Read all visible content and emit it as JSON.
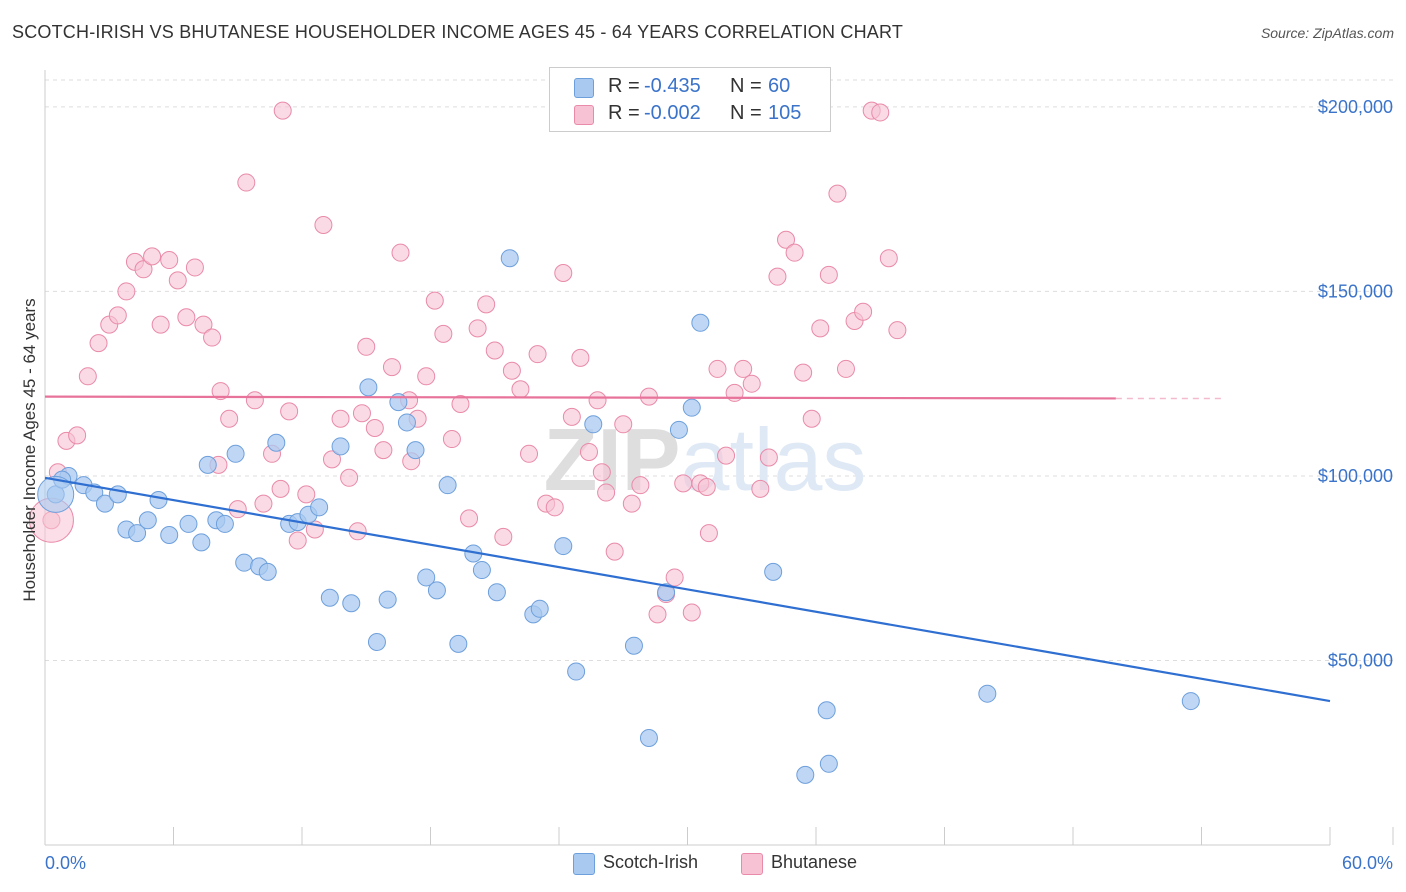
{
  "title": "SCOTCH-IRISH VS BHUTANESE HOUSEHOLDER INCOME AGES 45 - 64 YEARS CORRELATION CHART",
  "source": "Source: ZipAtlas.com",
  "watermark": "ZIPatlas",
  "colors": {
    "blue_fill": "#a9c9f0",
    "blue_stroke": "#6d9fdc",
    "blue_line": "#2f6fd1",
    "pink_fill": "#f7c3d4",
    "pink_stroke": "#e98aa8",
    "pink_line": "#e8739a",
    "axis_text": "#3a73c9",
    "grid": "#dddddd"
  },
  "legend": {
    "row1": {
      "r_label": "R =",
      "r_value": "-0.435",
      "n_label": "N =",
      "n_value": "60"
    },
    "row2": {
      "r_label": "R =",
      "r_value": "-0.002",
      "n_label": "N =",
      "n_value": "105"
    }
  },
  "chart_data": {
    "type": "scatter",
    "title": "SCOTCH-IRISH VS BHUTANESE HOUSEHOLDER INCOME AGES 45 - 64 YEARS CORRELATION CHART",
    "xlabel": "",
    "ylabel": "Householder Income Ages 45 - 64 years",
    "xlim": [
      0,
      60
    ],
    "ylim": [
      0,
      210000
    ],
    "x_tick_labels": [
      "0.0%",
      "60.0%"
    ],
    "y_tick_labels": [
      "$50,000",
      "$100,000",
      "$150,000",
      "$200,000"
    ],
    "y_ticks": [
      50000,
      100000,
      150000,
      200000
    ],
    "grid": true,
    "legend_position": "top-center",
    "series": [
      {
        "name": "Scotch-Irish",
        "color": "#a9c9f0",
        "trend": {
          "x0": 0,
          "y0": 99500,
          "x1": 60,
          "y1": 39000
        },
        "points": [
          [
            0.5,
            95000
          ],
          [
            1.1,
            100000
          ],
          [
            1.8,
            97500
          ],
          [
            2.3,
            95500
          ],
          [
            2.8,
            92500
          ],
          [
            3.4,
            95000
          ],
          [
            3.8,
            85500
          ],
          [
            4.3,
            84500
          ],
          [
            4.8,
            88000
          ],
          [
            5.3,
            93500
          ],
          [
            5.8,
            84000
          ],
          [
            6.7,
            87000
          ],
          [
            7.3,
            82000
          ],
          [
            7.6,
            103000
          ],
          [
            8.0,
            88000
          ],
          [
            8.4,
            87000
          ],
          [
            8.9,
            106000
          ],
          [
            9.3,
            76500
          ],
          [
            10.0,
            75500
          ],
          [
            10.4,
            74000
          ],
          [
            10.8,
            109000
          ],
          [
            11.4,
            87000
          ],
          [
            11.8,
            87500
          ],
          [
            12.3,
            89500
          ],
          [
            12.8,
            91500
          ],
          [
            13.3,
            67000
          ],
          [
            13.8,
            108000
          ],
          [
            14.3,
            65500
          ],
          [
            15.1,
            124000
          ],
          [
            15.5,
            55000
          ],
          [
            16.0,
            66500
          ],
          [
            16.5,
            120000
          ],
          [
            16.9,
            114500
          ],
          [
            17.3,
            107000
          ],
          [
            17.8,
            72500
          ],
          [
            18.3,
            69000
          ],
          [
            18.8,
            97500
          ],
          [
            19.3,
            54500
          ],
          [
            20.0,
            79000
          ],
          [
            20.4,
            74500
          ],
          [
            21.1,
            68500
          ],
          [
            21.7,
            159000
          ],
          [
            22.8,
            62500
          ],
          [
            23.1,
            64000
          ],
          [
            24.2,
            81000
          ],
          [
            24.8,
            47000
          ],
          [
            25.6,
            114000
          ],
          [
            27.5,
            54000
          ],
          [
            28.2,
            29000
          ],
          [
            29.0,
            68500
          ],
          [
            29.6,
            112500
          ],
          [
            30.2,
            118500
          ],
          [
            30.6,
            141500
          ],
          [
            34.0,
            74000
          ],
          [
            35.5,
            19000
          ],
          [
            36.5,
            36500
          ],
          [
            36.6,
            22000
          ],
          [
            44.0,
            41000
          ],
          [
            53.5,
            39000
          ],
          [
            0.8,
            99000
          ]
        ]
      },
      {
        "name": "Bhutanese",
        "color": "#f7c3d4",
        "trend": {
          "x0": 0,
          "y0": 121500,
          "x1": 50,
          "y1": 121000,
          "dash_to": 55
        },
        "points": [
          [
            0.3,
            88000
          ],
          [
            0.6,
            101000
          ],
          [
            1.0,
            109500
          ],
          [
            1.5,
            111000
          ],
          [
            2.0,
            127000
          ],
          [
            2.5,
            136000
          ],
          [
            3.0,
            141000
          ],
          [
            3.4,
            143500
          ],
          [
            3.8,
            150000
          ],
          [
            4.2,
            158000
          ],
          [
            4.6,
            156000
          ],
          [
            5.0,
            159500
          ],
          [
            5.4,
            141000
          ],
          [
            5.8,
            158500
          ],
          [
            6.2,
            153000
          ],
          [
            6.6,
            143000
          ],
          [
            7.0,
            156500
          ],
          [
            7.4,
            141000
          ],
          [
            7.8,
            137500
          ],
          [
            8.2,
            123000
          ],
          [
            8.6,
            115500
          ],
          [
            9.0,
            91000
          ],
          [
            9.4,
            179500
          ],
          [
            9.8,
            120500
          ],
          [
            10.2,
            92500
          ],
          [
            10.6,
            106000
          ],
          [
            11.0,
            96500
          ],
          [
            11.4,
            117500
          ],
          [
            11.8,
            82500
          ],
          [
            12.2,
            95000
          ],
          [
            12.6,
            85500
          ],
          [
            13.0,
            168000
          ],
          [
            13.4,
            104500
          ],
          [
            13.8,
            115500
          ],
          [
            14.2,
            99500
          ],
          [
            14.6,
            85000
          ],
          [
            15.0,
            135000
          ],
          [
            15.4,
            113000
          ],
          [
            15.8,
            107000
          ],
          [
            16.2,
            129500
          ],
          [
            16.6,
            160500
          ],
          [
            17.0,
            120500
          ],
          [
            17.4,
            115500
          ],
          [
            17.8,
            127000
          ],
          [
            18.2,
            147500
          ],
          [
            18.6,
            138500
          ],
          [
            19.0,
            110000
          ],
          [
            19.4,
            119500
          ],
          [
            19.8,
            88500
          ],
          [
            20.2,
            140000
          ],
          [
            20.6,
            146500
          ],
          [
            21.0,
            134000
          ],
          [
            21.4,
            83500
          ],
          [
            21.8,
            128500
          ],
          [
            22.2,
            123500
          ],
          [
            22.6,
            106000
          ],
          [
            23.0,
            133000
          ],
          [
            23.4,
            92500
          ],
          [
            23.8,
            91500
          ],
          [
            24.2,
            155000
          ],
          [
            24.6,
            116000
          ],
          [
            25.0,
            132000
          ],
          [
            25.4,
            106500
          ],
          [
            25.8,
            120500
          ],
          [
            26.2,
            95500
          ],
          [
            26.6,
            79500
          ],
          [
            27.0,
            114000
          ],
          [
            27.4,
            92500
          ],
          [
            27.8,
            97500
          ],
          [
            28.2,
            121500
          ],
          [
            28.6,
            62500
          ],
          [
            29.0,
            68000
          ],
          [
            29.4,
            72500
          ],
          [
            29.8,
            98000
          ],
          [
            30.2,
            63000
          ],
          [
            30.6,
            98000
          ],
          [
            31.0,
            84500
          ],
          [
            31.4,
            129000
          ],
          [
            31.8,
            105500
          ],
          [
            32.2,
            122500
          ],
          [
            32.6,
            129000
          ],
          [
            33.0,
            125000
          ],
          [
            33.4,
            96500
          ],
          [
            33.8,
            105000
          ],
          [
            34.2,
            154000
          ],
          [
            34.6,
            164000
          ],
          [
            35.0,
            160500
          ],
          [
            35.4,
            128000
          ],
          [
            35.8,
            115500
          ],
          [
            36.2,
            140000
          ],
          [
            36.6,
            154500
          ],
          [
            37.0,
            176500
          ],
          [
            37.4,
            129000
          ],
          [
            37.8,
            142000
          ],
          [
            38.2,
            144500
          ],
          [
            38.6,
            199000
          ],
          [
            39.0,
            198500
          ],
          [
            39.4,
            159000
          ],
          [
            39.8,
            139500
          ],
          [
            11.1,
            199000
          ],
          [
            8.1,
            103000
          ],
          [
            14.8,
            117000
          ],
          [
            17.1,
            104000
          ],
          [
            26.0,
            101000
          ],
          [
            30.9,
            97000
          ]
        ]
      }
    ]
  },
  "bottom_legend": {
    "item1": "Scotch-Irish",
    "item2": "Bhutanese"
  },
  "axis_labels": {
    "x_left": "0.0%",
    "x_right": "60.0%",
    "y_50k": "$50,000",
    "y_100k": "$100,000",
    "y_150k": "$150,000",
    "y_200k": "$200,000"
  }
}
